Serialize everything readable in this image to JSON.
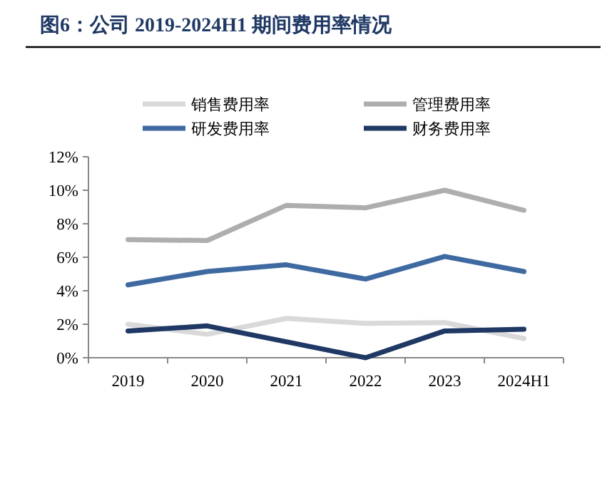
{
  "chart_data": {
    "type": "line",
    "title": "图6：公司 2019-2024H1 期间费用率情况",
    "categories": [
      "2019",
      "2020",
      "2021",
      "2022",
      "2023",
      "2024H1"
    ],
    "series": [
      {
        "name": "销售费用率",
        "color": "#d9d9d9",
        "values": [
          2.0,
          1.4,
          2.35,
          2.05,
          2.1,
          1.15
        ]
      },
      {
        "name": "管理费用率",
        "color": "#aeaeae",
        "values": [
          7.05,
          7.0,
          9.1,
          8.95,
          10.0,
          8.8
        ]
      },
      {
        "name": "研发费用率",
        "color": "#3e6aa1",
        "values": [
          4.35,
          5.15,
          5.55,
          4.7,
          6.05,
          5.15
        ]
      },
      {
        "name": "财务费用率",
        "color": "#1f3864",
        "values": [
          1.6,
          1.9,
          0.95,
          0,
          1.6,
          1.7
        ]
      }
    ],
    "ylim": [
      0,
      12
    ],
    "yticks": [
      {
        "value": 0,
        "label": "0%"
      },
      {
        "value": 2,
        "label": "2%"
      },
      {
        "value": 4,
        "label": "4%"
      },
      {
        "value": 6,
        "label": "6%"
      },
      {
        "value": 8,
        "label": "8%"
      },
      {
        "value": 10,
        "label": "10%"
      },
      {
        "value": 12,
        "label": "12%"
      }
    ],
    "legend": "top",
    "grid": false,
    "marker": "none",
    "line_style": "solid"
  }
}
